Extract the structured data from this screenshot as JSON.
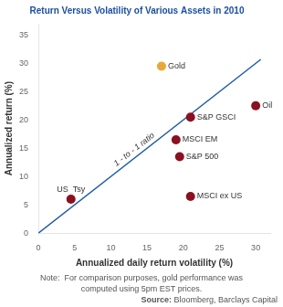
{
  "chart_data": {
    "type": "scatter",
    "title": "Return Versus Volatility of Various Assets in 2010",
    "title_color": "#1B4FA0",
    "xlabel": "Annualized daily return volatility (%)",
    "ylabel": "Annualized return (%)",
    "xlim": [
      0,
      32
    ],
    "ylim": [
      0,
      37
    ],
    "xticks": [
      0,
      5,
      10,
      15,
      20,
      25,
      30
    ],
    "yticks": [
      0,
      5,
      10,
      15,
      20,
      25,
      30,
      35
    ],
    "grid": false,
    "series": [
      {
        "name": "1 - to - 1 ratio",
        "type": "line",
        "color": "#1F5CA6",
        "x": [
          0,
          30.7
        ],
        "values": [
          0,
          30.7
        ]
      },
      {
        "type": "scatter",
        "labels": [
          "Gold",
          "Oil",
          "S&P GSCI",
          "MSCI EM",
          "S&P 500",
          "US  Tsy",
          "MSCI ex US"
        ],
        "x": [
          17.0,
          30.0,
          21.0,
          19.0,
          19.5,
          4.5,
          21.0
        ],
        "values": [
          29.5,
          22.5,
          20.5,
          16.5,
          13.5,
          6.0,
          6.5
        ],
        "colors": [
          "#E8A838",
          "#8B1020",
          "#8B1020",
          "#8B1020",
          "#8B1020",
          "#8B1020",
          "#8B1020"
        ]
      }
    ],
    "notes": [
      "Note:  For comparison purposes, gold performance was",
      "computed using 5pm EST prices."
    ],
    "source_label": "Source:",
    "source_text": " Bloomberg, Barclays Capital"
  }
}
